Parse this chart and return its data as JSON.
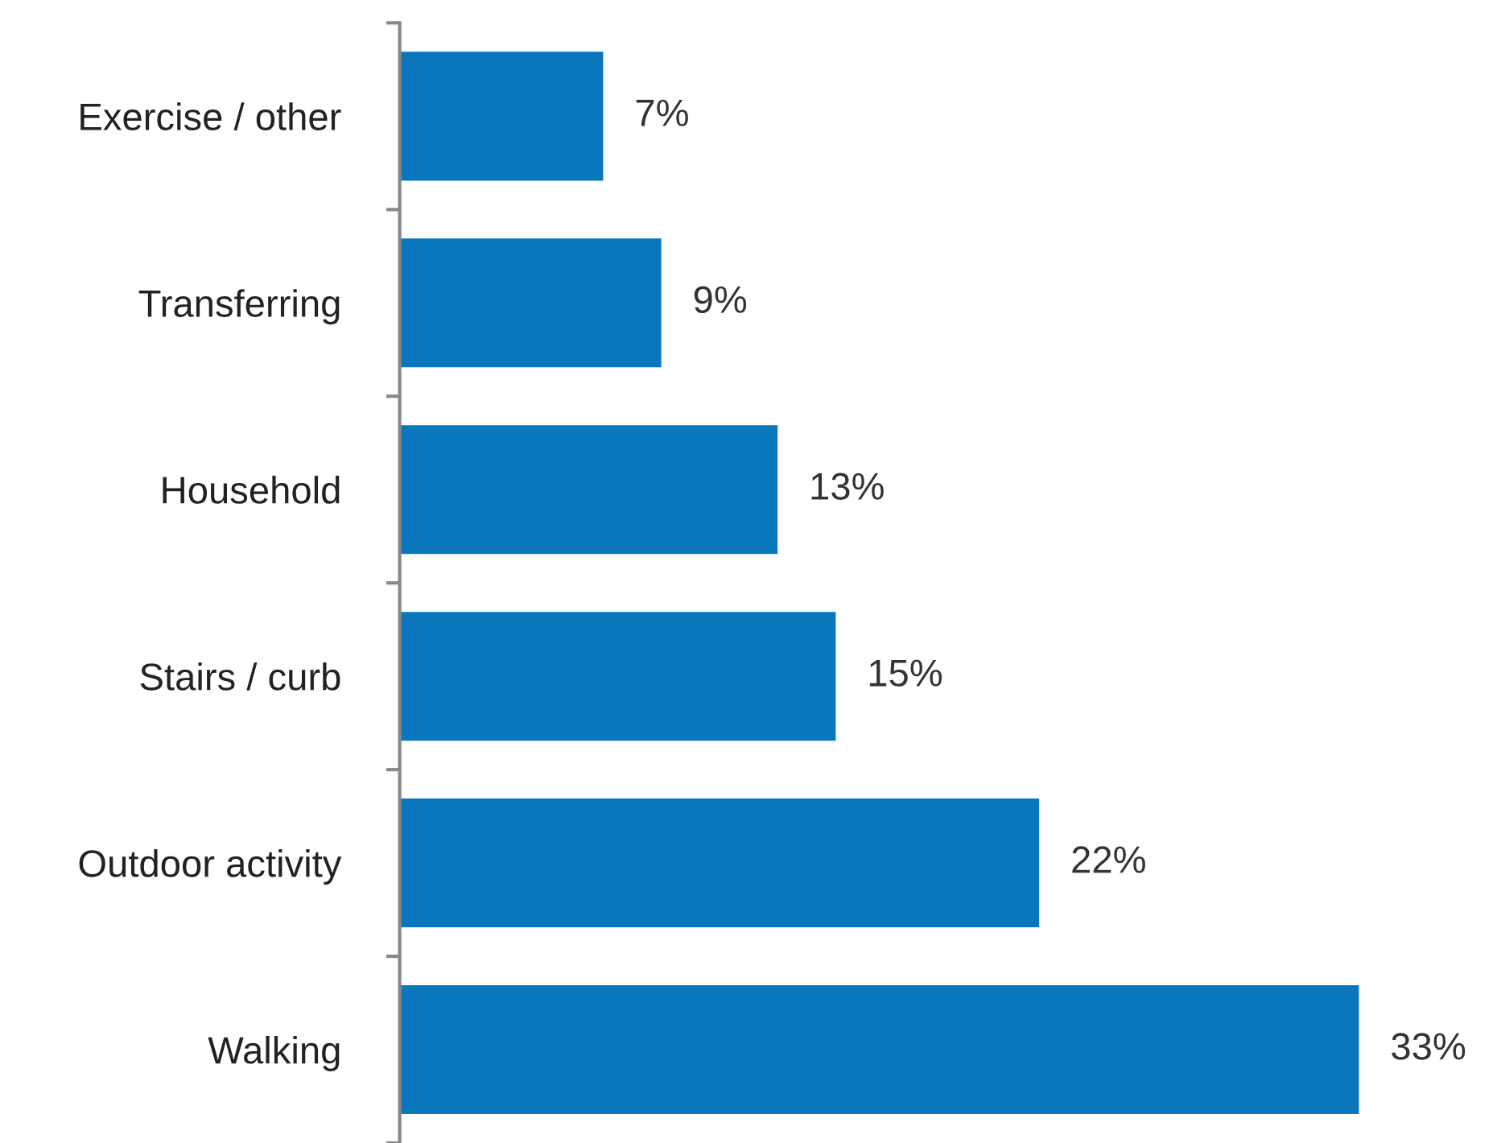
{
  "chart_data": {
    "type": "bar",
    "orientation": "horizontal",
    "categories": [
      "Exercise / other",
      "Transferring",
      "Household",
      "Stairs / curb",
      "Outdoor activity",
      "Walking"
    ],
    "values": [
      7,
      9,
      13,
      15,
      22,
      33
    ],
    "value_labels": [
      "7%",
      "9%",
      "13%",
      "15%",
      "22%",
      "33%"
    ],
    "color": "#0a77bd",
    "grid": false,
    "legend": false
  }
}
